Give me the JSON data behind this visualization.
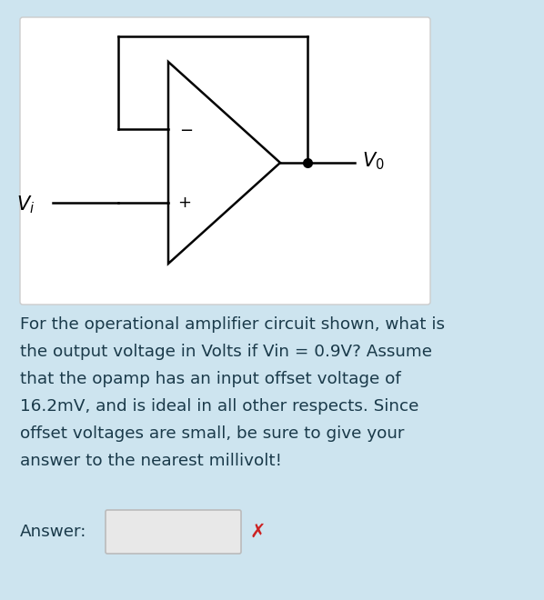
{
  "background_color": "#cde4ef",
  "circuit_box_bg": "#ffffff",
  "body_text_lines": [
    "For the operational amplifier circuit shown, what is",
    "the output voltage in Volts if Vin = 0.9V? Assume",
    "that the opamp has an input offset voltage of",
    "16.2mV, and is ideal in all other respects. Since",
    "offset voltages are small, be sure to give your",
    "answer to the nearest millivolt!"
  ],
  "answer_label": "Answer:",
  "body_fontsize": 13.2,
  "answer_fontsize": 13.2,
  "line_color": "#000000",
  "dot_color": "#000000",
  "text_color": "#1a3a4a",
  "Vi_label": "$V_i$",
  "Vo_label": "$V_0$",
  "minus_label": "−",
  "plus_label": "+"
}
